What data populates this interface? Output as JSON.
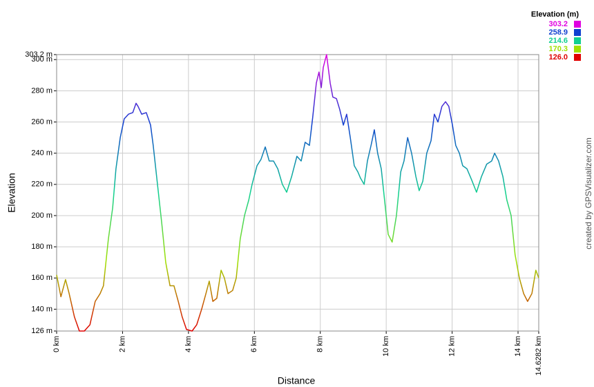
{
  "chart_data": {
    "type": "line",
    "xlabel": "Distance",
    "ylabel": "Elevation",
    "credit": "created by GPSVisualizer.com",
    "grid": true,
    "xlim": [
      0,
      14.6282
    ],
    "xticks": [
      {
        "value": 0,
        "label": "0 km"
      },
      {
        "value": 2,
        "label": "2 km"
      },
      {
        "value": 4,
        "label": "4 km"
      },
      {
        "value": 6,
        "label": "6 km"
      },
      {
        "value": 8,
        "label": "8 km"
      },
      {
        "value": 10,
        "label": "10 km"
      },
      {
        "value": 12,
        "label": "12 km"
      },
      {
        "value": 14,
        "label": "14 km"
      },
      {
        "value": 14.6282,
        "label": "14.6282 km"
      }
    ],
    "ylim": [
      126,
      303.2
    ],
    "yticks": [
      {
        "value": 126,
        "label": "126 m"
      },
      {
        "value": 140,
        "label": "140 m"
      },
      {
        "value": 160,
        "label": "160 m"
      },
      {
        "value": 180,
        "label": "180 m"
      },
      {
        "value": 200,
        "label": "200 m"
      },
      {
        "value": 220,
        "label": "220 m"
      },
      {
        "value": 240,
        "label": "240 m"
      },
      {
        "value": 260,
        "label": "260 m"
      },
      {
        "value": 280,
        "label": "280 m"
      },
      {
        "value": 300,
        "label": "300 m"
      },
      {
        "value": 303.2,
        "label": "303.2 m"
      }
    ],
    "color_scale_title": "Elevation (m)",
    "color_scale": [
      {
        "value": 303.2,
        "label": "303.2",
        "color": "#e000e0"
      },
      {
        "value": 258.9,
        "label": "258.9",
        "color": "#1040d0"
      },
      {
        "value": 214.6,
        "label": "214.6",
        "color": "#10d090"
      },
      {
        "value": 170.3,
        "label": "170.3",
        "color": "#a0e000"
      },
      {
        "value": 126.0,
        "label": "126.0",
        "color": "#e00000"
      }
    ],
    "x": [
      0,
      0.13,
      0.27,
      0.38,
      0.54,
      0.69,
      0.84,
      1.01,
      1.17,
      1.32,
      1.42,
      1.57,
      1.7,
      1.8,
      1.93,
      2.05,
      2.18,
      2.31,
      2.41,
      2.47,
      2.58,
      2.72,
      2.85,
      2.93,
      3.06,
      3.19,
      3.31,
      3.44,
      3.56,
      3.69,
      3.81,
      3.94,
      4.11,
      4.25,
      4.4,
      4.53,
      4.63,
      4.74,
      4.86,
      4.99,
      5.09,
      5.2,
      5.34,
      5.45,
      5.57,
      5.7,
      5.83,
      5.93,
      6.08,
      6.2,
      6.33,
      6.45,
      6.58,
      6.71,
      6.85,
      6.98,
      7.13,
      7.29,
      7.42,
      7.54,
      7.67,
      7.77,
      7.88,
      7.96,
      8.03,
      8.09,
      8.19,
      8.3,
      8.38,
      8.49,
      8.59,
      8.7,
      8.8,
      8.91,
      9.03,
      9.14,
      9.22,
      9.33,
      9.43,
      9.54,
      9.64,
      9.74,
      9.85,
      9.95,
      10.06,
      10.18,
      10.31,
      10.44,
      10.54,
      10.65,
      10.77,
      10.9,
      11.0,
      11.11,
      11.23,
      11.36,
      11.46,
      11.57,
      11.69,
      11.8,
      11.9,
      12.01,
      12.11,
      12.22,
      12.32,
      12.45,
      12.59,
      12.74,
      12.89,
      13.05,
      13.2,
      13.29,
      13.41,
      13.54,
      13.66,
      13.79,
      13.91,
      14.04,
      14.17,
      14.29,
      14.42,
      14.54,
      14.6282
    ],
    "values": [
      162,
      148,
      159,
      150,
      135,
      126,
      126,
      130,
      145,
      150,
      155,
      185,
      205,
      230,
      250,
      262,
      265,
      266,
      272,
      270,
      265,
      266,
      258,
      245,
      220,
      195,
      170,
      155,
      155,
      145,
      135,
      127,
      126,
      130,
      140,
      150,
      158,
      145,
      147,
      165,
      160,
      150,
      152,
      160,
      185,
      200,
      210,
      220,
      232,
      236,
      244,
      235,
      235,
      230,
      220,
      215,
      225,
      238,
      235,
      247,
      245,
      263,
      285,
      292,
      282,
      295,
      303.2,
      285,
      276,
      275,
      268,
      258,
      265,
      250,
      232,
      228,
      224,
      220,
      235,
      245,
      255,
      240,
      230,
      210,
      188,
      183,
      200,
      228,
      235,
      250,
      240,
      225,
      216,
      222,
      240,
      248,
      265,
      260,
      270,
      273,
      270,
      258,
      245,
      240,
      232,
      230,
      223,
      215,
      225,
      233,
      235,
      240,
      235,
      225,
      210,
      200,
      175,
      160,
      150,
      145,
      150,
      165,
      160
    ]
  }
}
